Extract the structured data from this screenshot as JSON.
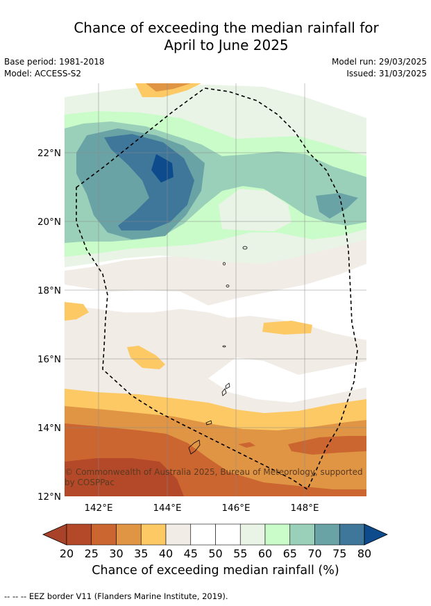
{
  "title_line1": "Chance of exceeding the median rainfall for",
  "title_line2": "April to June 2025",
  "base_period": "Base period: 1981-2018",
  "model": "Model: ACCESS-S2",
  "model_run": "Model run: 29/03/2025",
  "issued": "Issued: 31/03/2025",
  "copyright_line1": "© Commonwealth of Australia 2025, Bureau of Meteorology, supported",
  "copyright_line2": "by COSPPac",
  "x_ticks": [
    "142°E",
    "144°E",
    "146°E",
    "148°E"
  ],
  "y_ticks": [
    "22°N",
    "20°N",
    "18°N",
    "16°N",
    "14°N",
    "12°N"
  ],
  "colorbar": {
    "label": "Chance of exceeding median rainfall (%)",
    "ticks": [
      "20",
      "25",
      "30",
      "35",
      "40",
      "45",
      "50",
      "55",
      "60",
      "65",
      "70",
      "75",
      "80"
    ],
    "colors": [
      "#a8432a",
      "#b4492a",
      "#cb6630",
      "#e09545",
      "#fcc965",
      "#f1ece6",
      "#ffffff",
      "#ffffff",
      "#e9f4e6",
      "#c9fcc8",
      "#9ad0b9",
      "#6aa3a5",
      "#3f779a",
      "#0d4b8c"
    ]
  },
  "footnote": "--  --  -- EEZ border V11 (Flanders Marine Institute, 2019)."
}
